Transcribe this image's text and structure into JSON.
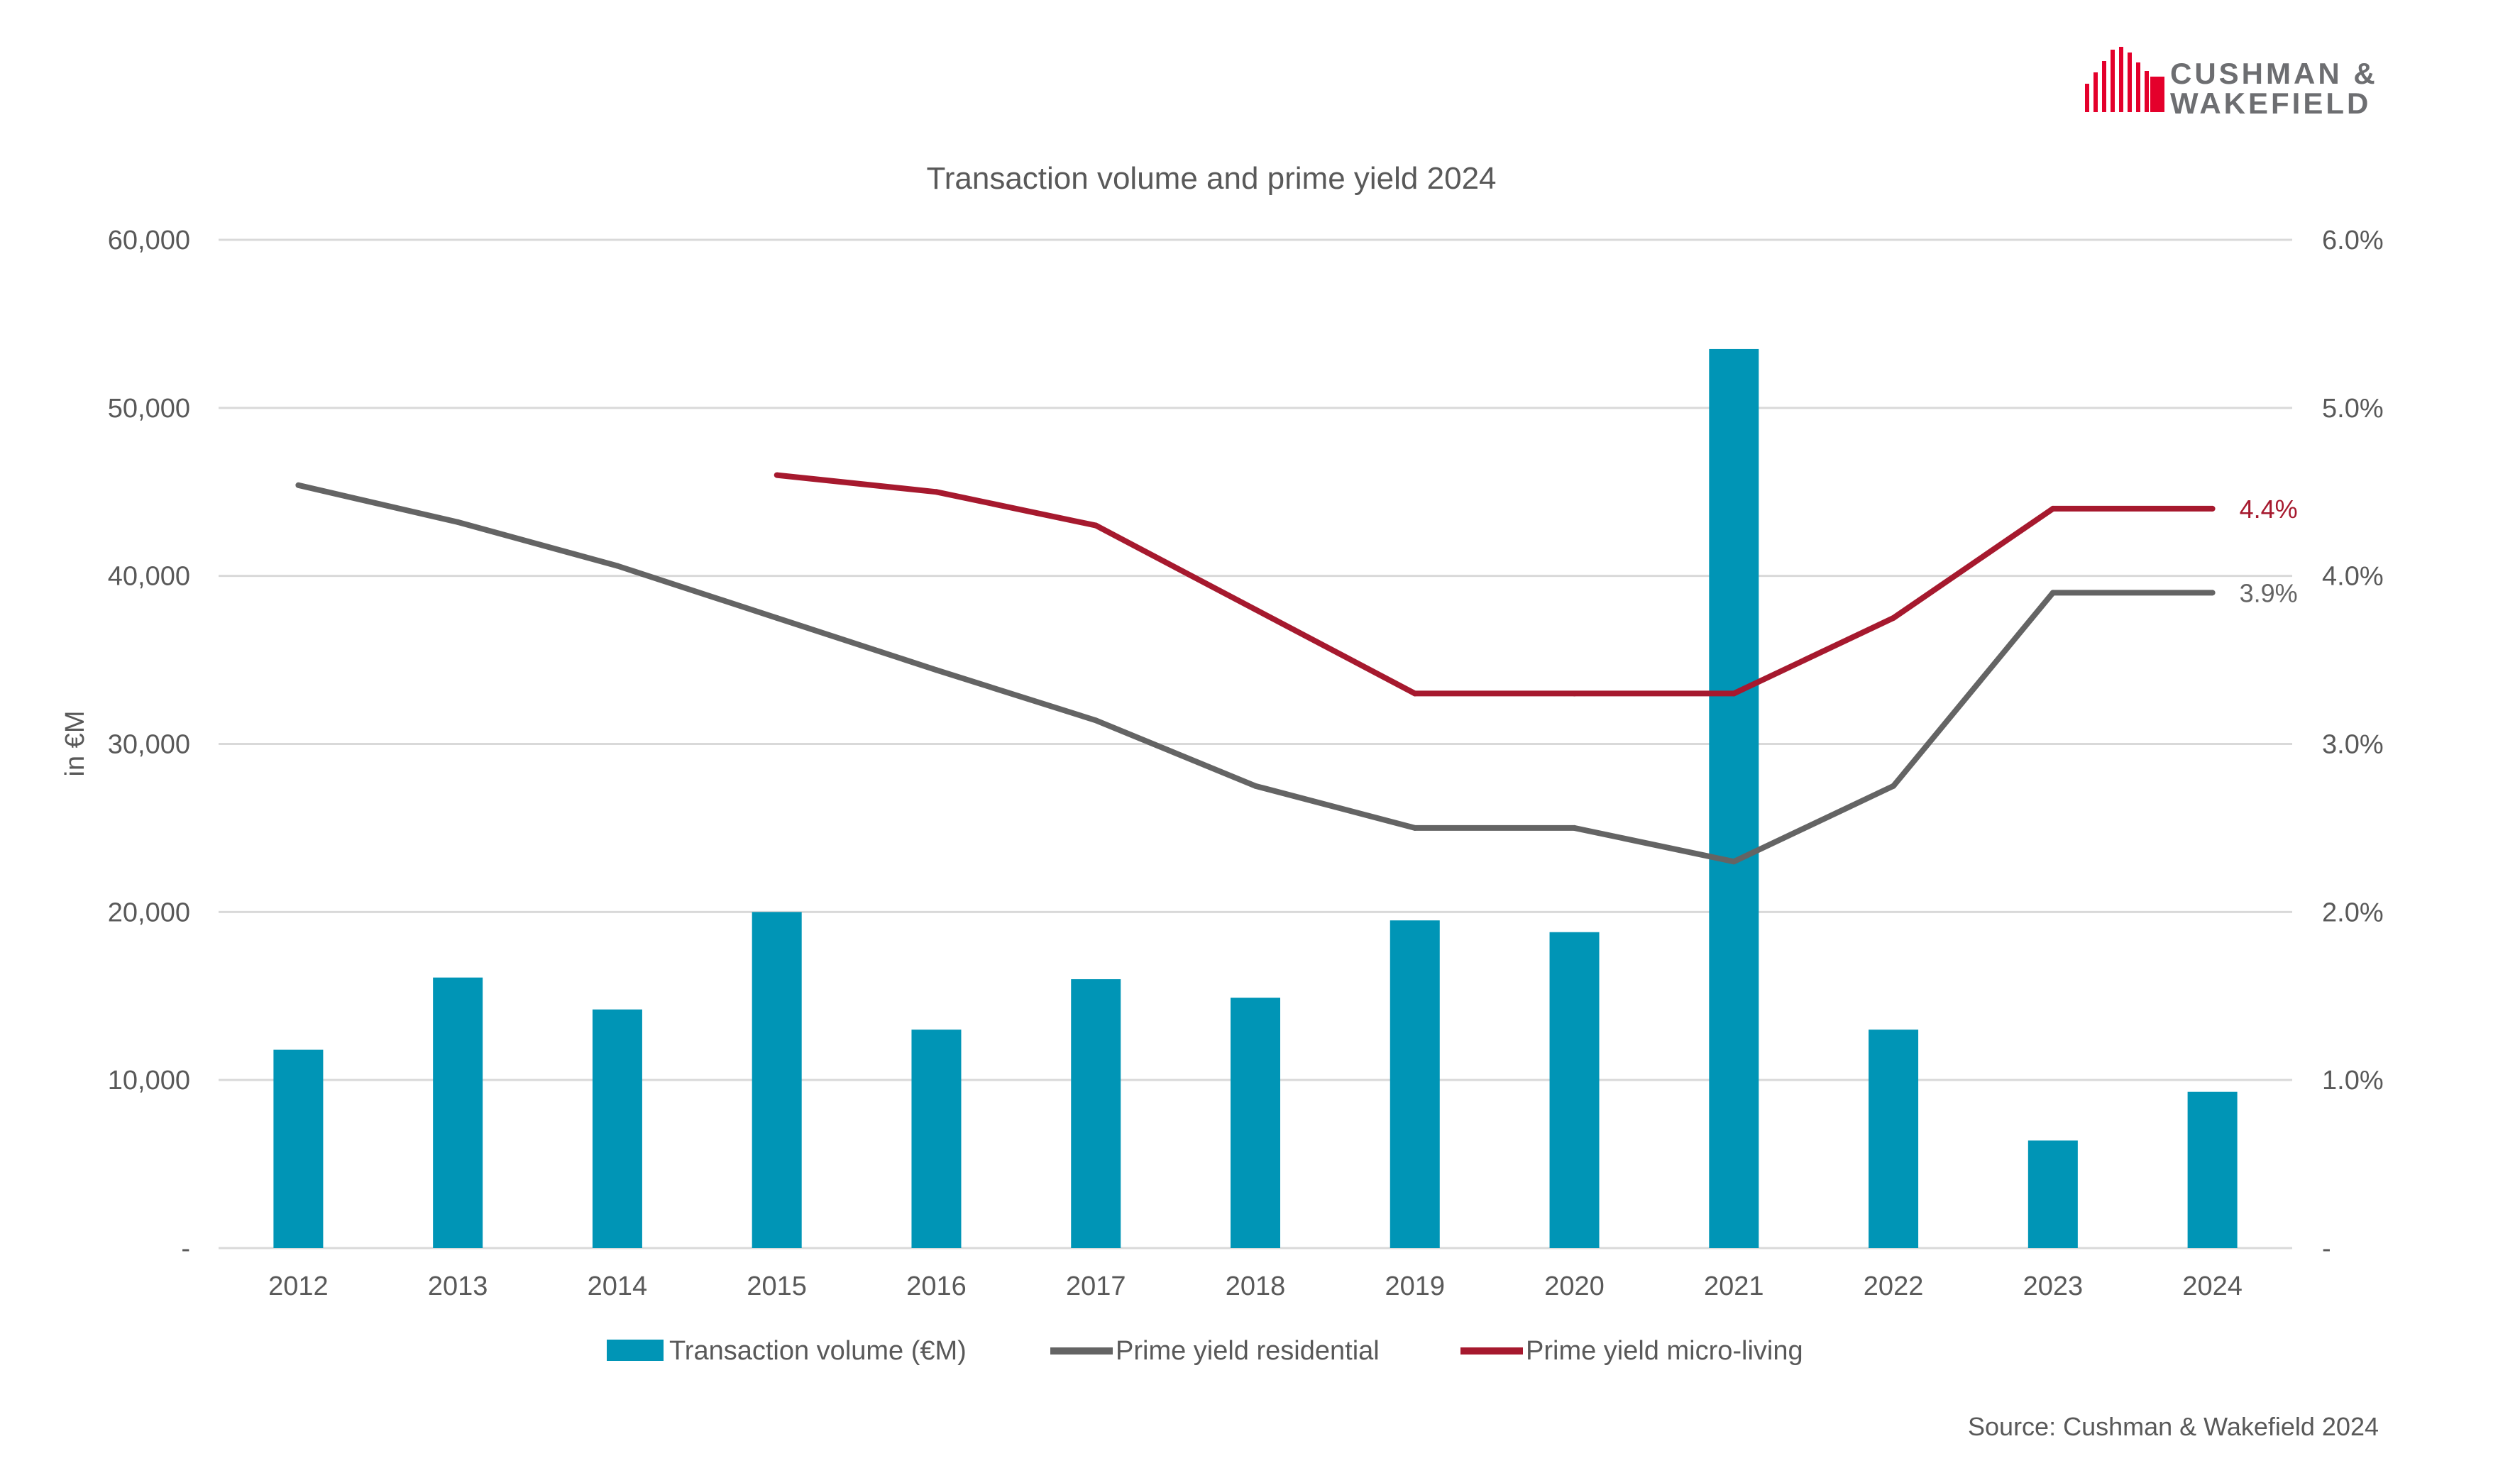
{
  "colors": {
    "bar": "#0095B6",
    "residential": "#646464",
    "micro_living": "#A6192E",
    "grid": "#D9D9D9",
    "text": "#595959",
    "logo_red": "#E4002B",
    "logo_text": "#6D6E71"
  },
  "logo": {
    "line1": "CUSHMAN &",
    "line2": "WAKEFIELD",
    "icon": "building-bars-icon"
  },
  "source": "Source: Cushman & Wakefield 2024",
  "chart_data": {
    "type": "bar",
    "title": "Transaction volume and prime yield 2024",
    "ylabel": "in €M",
    "ylim": [
      0,
      60000
    ],
    "y2lim": [
      0,
      0.06
    ],
    "y_ticks": [
      "-",
      "10,000",
      "20,000",
      "30,000",
      "40,000",
      "50,000",
      "60,000"
    ],
    "y2_ticks": [
      "-",
      "1.0%",
      "2.0%",
      "3.0%",
      "4.0%",
      "5.0%",
      "6.0%"
    ],
    "categories": [
      "2012",
      "2013",
      "2014",
      "2015",
      "2016",
      "2017",
      "2018",
      "2019",
      "2020",
      "2021",
      "2022",
      "2023",
      "2024"
    ],
    "series": [
      {
        "name": "Transaction volume (€M)",
        "type": "bar",
        "axis": "left",
        "values": [
          11800,
          16100,
          14200,
          20000,
          13000,
          16000,
          14900,
          19500,
          18800,
          53500,
          13000,
          6400,
          9300
        ]
      },
      {
        "name": "Prime yield residential",
        "type": "line",
        "axis": "right",
        "values": [
          0.0454,
          0.0432,
          0.0406,
          0.0375,
          0.0344,
          0.0314,
          0.0275,
          0.025,
          0.025,
          0.023,
          0.0275,
          0.039,
          0.039
        ],
        "end_label": "3.9%"
      },
      {
        "name": "Prime yield micro-living",
        "type": "line",
        "axis": "right",
        "values": [
          null,
          null,
          null,
          0.046,
          0.045,
          0.043,
          0.038,
          0.033,
          0.033,
          0.033,
          0.0375,
          0.044,
          0.044
        ],
        "end_label": "4.4%"
      }
    ],
    "legend": [
      "Transaction volume (€M)",
      "Prime yield residential",
      "Prime yield micro-living"
    ],
    "legend_position": "bottom",
    "grid": true
  }
}
